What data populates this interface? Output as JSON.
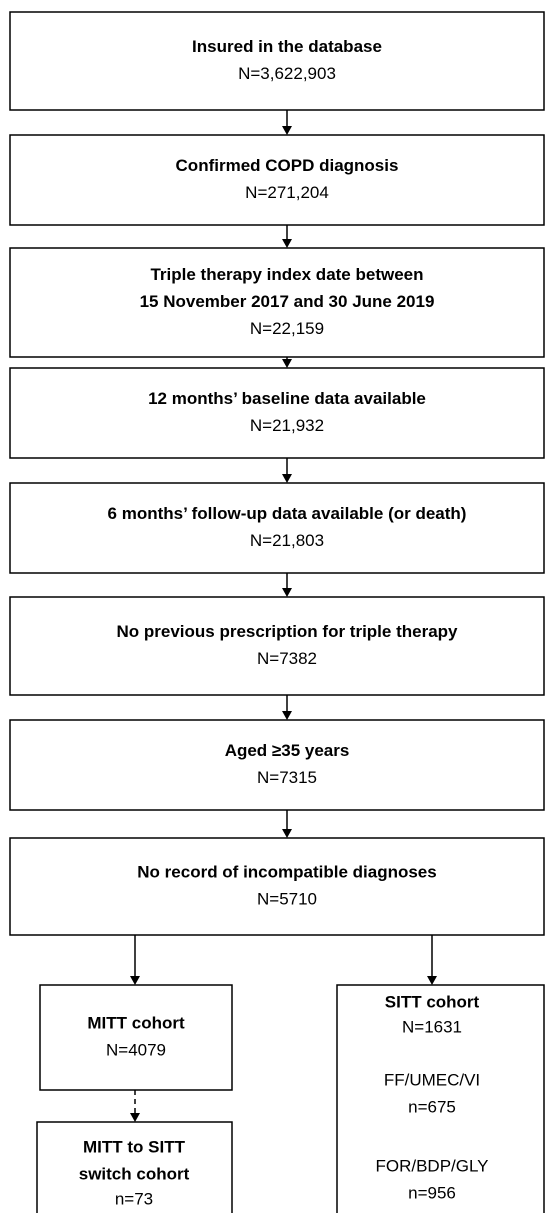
{
  "nodes": [
    {
      "title": [
        "Insured in the database"
      ],
      "count": "N=3,622,903"
    },
    {
      "title": [
        "Confirmed COPD diagnosis"
      ],
      "count": "N=271,204"
    },
    {
      "title": [
        "Triple therapy index date between",
        "15 November 2017 and 30 June 2019"
      ],
      "count": "N=22,159"
    },
    {
      "title": [
        "12 months’ baseline data available"
      ],
      "count": "N=21,932"
    },
    {
      "title": [
        "6 months’ follow-up data available (or death)"
      ],
      "count": "N=21,803"
    },
    {
      "title": [
        "No previous prescription for triple therapy"
      ],
      "count": "N=7382"
    },
    {
      "title": [
        "Aged ≥35 years"
      ],
      "count": "N=7315"
    },
    {
      "title": [
        "No record of incompatible diagnoses"
      ],
      "count": "N=5710"
    }
  ],
  "branches": {
    "mitt": {
      "title": "MITT cohort",
      "count": "N=4079"
    },
    "switch": {
      "title": [
        "MITT to SITT",
        "switch cohort"
      ],
      "count": "n=73"
    },
    "sitt": {
      "title": "SITT cohort",
      "count": "N=1631",
      "subgroups": [
        {
          "name": "FF/UMEC/VI",
          "count": "n=675"
        },
        {
          "name": "FOR/BDP/GLY",
          "count": "n=956"
        }
      ]
    }
  }
}
